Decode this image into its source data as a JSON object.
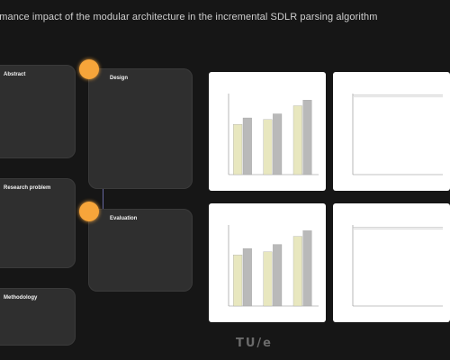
{
  "page": {
    "title": "...rmance impact of the modular architecture in the incremental SDLR parsing algorithm"
  },
  "left_cards": [
    {
      "heading": "Abstract",
      "lines": [
        "",
        "",
        "",
        "",
        "",
        "",
        "",
        ""
      ]
    },
    {
      "heading": "Research problem",
      "lines": [
        "",
        "",
        "",
        "",
        "",
        ""
      ]
    },
    {
      "heading": "Methodology",
      "lines": [
        "",
        "",
        ""
      ]
    }
  ],
  "center_cards": [
    {
      "heading": "Design",
      "lines": [
        "",
        "",
        "",
        "",
        "",
        "",
        "",
        "",
        "",
        "",
        ""
      ]
    },
    {
      "heading": "Evaluation",
      "lines": [
        "",
        "",
        "",
        "",
        "",
        ""
      ]
    }
  ],
  "panels": [
    {
      "label": "",
      "chart": "bar"
    },
    {
      "label": "",
      "chart": "line"
    },
    {
      "label": "",
      "chart": "bar"
    },
    {
      "label": "",
      "chart": "line"
    }
  ],
  "chart_data": [
    {
      "type": "bar",
      "title": "",
      "categories": [
        "",
        "",
        ""
      ],
      "series": [
        {
          "values": [
            62,
            68,
            85
          ]
        },
        {
          "values": [
            70,
            75,
            92
          ]
        }
      ],
      "ylim": [
        0,
        100
      ]
    },
    {
      "type": "line",
      "title": "",
      "x": [
        0,
        1,
        2,
        3,
        4,
        5,
        6
      ],
      "series": [
        {
          "values": [
            98,
            98,
            98,
            98,
            98,
            98,
            98
          ]
        },
        {
          "values": [
            96,
            96,
            96,
            96,
            96,
            96,
            96
          ]
        }
      ],
      "ylim": [
        0,
        100
      ]
    },
    {
      "type": "bar",
      "title": "",
      "categories": [
        "",
        "",
        ""
      ],
      "series": [
        {
          "values": [
            63,
            67,
            86
          ]
        },
        {
          "values": [
            71,
            76,
            93
          ]
        }
      ],
      "ylim": [
        0,
        100
      ]
    },
    {
      "type": "line",
      "title": "",
      "x": [
        0,
        1,
        2,
        3,
        4,
        5,
        6
      ],
      "series": [
        {
          "values": [
            97,
            97,
            97,
            97,
            97,
            97,
            97
          ]
        },
        {
          "values": [
            95,
            95,
            95,
            95,
            95,
            95,
            95
          ]
        }
      ],
      "ylim": [
        0,
        100
      ]
    }
  ],
  "colors": {
    "bar_series_1": "#e8e7bf",
    "bar_series_2": "#b9b9b9",
    "line_series_1": "#c8c8c8",
    "line_series_2": "#e0e0e0",
    "accent": "#f7a53a"
  },
  "footer": {
    "logo_text": "TU/e",
    "left_note": "",
    "right_note": ""
  }
}
